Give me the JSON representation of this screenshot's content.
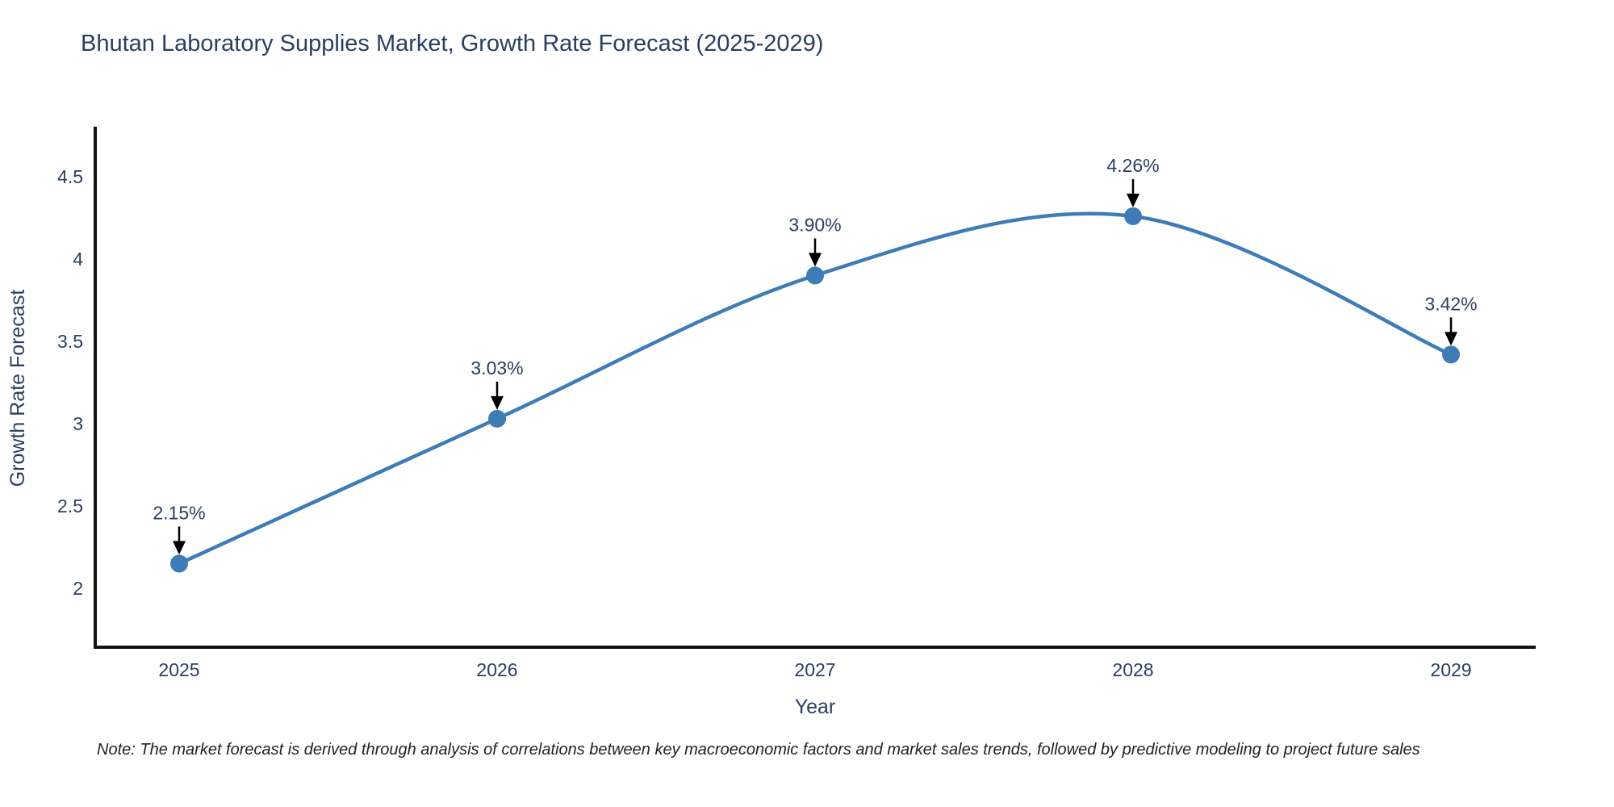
{
  "page": {
    "title": "Bhutan Laboratory Supplies Market, Growth Rate Forecast (2025-2029)",
    "note": "Note: The market forecast is derived through analysis of correlations between key macroeconomic factors and market sales trends, followed by predictive modeling to project future sales"
  },
  "chart_data": {
    "type": "line",
    "title": "Bhutan Laboratory Supplies Market, Growth Rate Forecast (2025-2029)",
    "x": [
      2025,
      2026,
      2027,
      2028,
      2029
    ],
    "y": [
      2.15,
      3.03,
      3.9,
      4.26,
      3.42
    ],
    "point_labels": [
      "2.15%",
      "3.03%",
      "3.90%",
      "4.26%",
      "3.42%"
    ],
    "xlabel": "Year",
    "ylabel": "Growth Rate Forecast",
    "xticks": [
      "2025",
      "2026",
      "2027",
      "2028",
      "2029"
    ],
    "yticks": [
      2,
      2.5,
      3,
      3.5,
      4,
      4.5
    ],
    "ylim": [
      1.65,
      4.8
    ],
    "grid": false,
    "legend": "none",
    "line_shape": "spline",
    "annotation_note": "Note: The market forecast is derived through analysis of correlations between key macroeconomic factors and market sales trends, followed by predictive modeling to project future sales",
    "colors": {
      "line": "#3E7CB8",
      "marker": "#3E7CB8",
      "text": "#2a3f5f",
      "axis": "#111111",
      "arrow": "#000000",
      "background": "#ffffff"
    }
  }
}
